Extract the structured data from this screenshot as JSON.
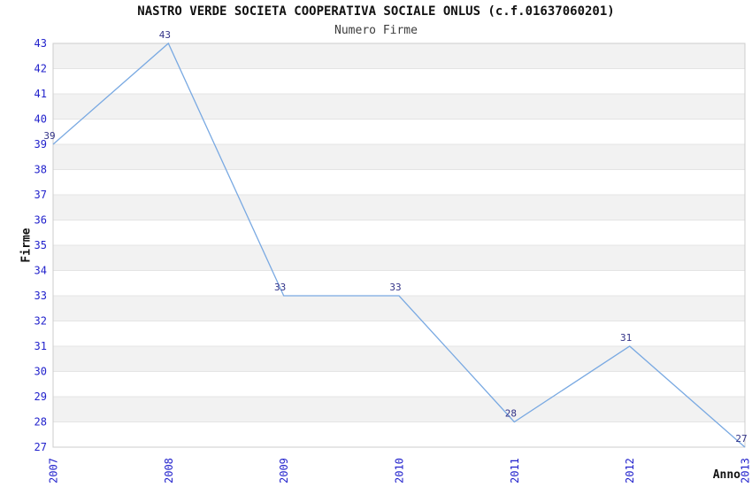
{
  "chart_data": {
    "type": "line",
    "title": "NASTRO VERDE SOCIETA COOPERATIVA SOCIALE ONLUS (c.f.01637060201)",
    "subtitle": "Numero Firme",
    "xlabel": "Anno",
    "ylabel": "Firme",
    "categories": [
      "2007",
      "2008",
      "2009",
      "2010",
      "2011",
      "2012",
      "2013"
    ],
    "values": [
      39,
      43,
      33,
      33,
      28,
      31,
      27
    ],
    "point_labels": [
      "39",
      "43",
      "33",
      "33",
      "28",
      "31",
      "27"
    ],
    "ylim": [
      27,
      43
    ],
    "y_ticks": [
      27,
      28,
      29,
      30,
      31,
      32,
      33,
      34,
      35,
      36,
      37,
      38,
      39,
      40,
      41,
      42,
      43
    ],
    "legend": "none",
    "grid": "horizontal gridlines with alternating shaded bands",
    "x_tick_rotation_deg": -90,
    "colors": {
      "line": "#79a9e2",
      "tick_label": "#2222cc",
      "data_label": "#333388",
      "band_gray": "#f2f2f2",
      "band_white": "#ffffff",
      "gridline": "#e4e4e4",
      "plot_border": "#cccccc",
      "title": "#111111",
      "subtitle": "#3c3c3c",
      "background": "#ffffff"
    }
  }
}
